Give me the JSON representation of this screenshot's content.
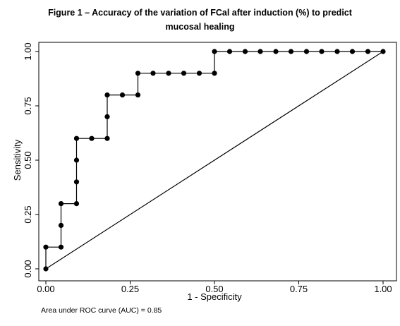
{
  "title_lines": [
    "Figure 1 – Accuracy of the variation of FCal after induction (%) to predict",
    "mucosal healing"
  ],
  "footnote": "Area under ROC curve (AUC) = 0.85",
  "chart_data": {
    "type": "line",
    "title": "Figure 1 – Accuracy of the variation of FCal after induction (%) to predict mucosal healing",
    "xlabel": "1 - Specificity",
    "ylabel": "Sensitivity",
    "xlim": [
      0,
      1
    ],
    "ylim": [
      0,
      1
    ],
    "x_ticks": [
      "0.00",
      "0.25",
      "0.50",
      "0.75",
      "1.00"
    ],
    "y_ticks": [
      "0.00",
      "0.25",
      "0.50",
      "0.75",
      "1.00"
    ],
    "grid": false,
    "series": [
      {
        "kind": "roc-curve",
        "step": true,
        "markers": true,
        "color": "#000000",
        "points": [
          [
            0,
            0
          ],
          [
            0,
            0.1
          ],
          [
            0.045,
            0.1
          ],
          [
            0.045,
            0.2
          ],
          [
            0.045,
            0.3
          ],
          [
            0.091,
            0.3
          ],
          [
            0.091,
            0.4
          ],
          [
            0.091,
            0.5
          ],
          [
            0.091,
            0.6
          ],
          [
            0.136,
            0.6
          ],
          [
            0.182,
            0.6
          ],
          [
            0.182,
            0.7
          ],
          [
            0.182,
            0.8
          ],
          [
            0.227,
            0.8
          ],
          [
            0.273,
            0.8
          ],
          [
            0.273,
            0.9
          ],
          [
            0.318,
            0.9
          ],
          [
            0.364,
            0.9
          ],
          [
            0.409,
            0.9
          ],
          [
            0.455,
            0.9
          ],
          [
            0.5,
            0.9
          ],
          [
            0.5,
            1.0
          ],
          [
            0.545,
            1.0
          ],
          [
            0.591,
            1.0
          ],
          [
            0.636,
            1.0
          ],
          [
            0.682,
            1.0
          ],
          [
            0.727,
            1.0
          ],
          [
            0.773,
            1.0
          ],
          [
            0.818,
            1.0
          ],
          [
            0.864,
            1.0
          ],
          [
            0.909,
            1.0
          ],
          [
            0.955,
            1.0
          ],
          [
            1.0,
            1.0
          ]
        ]
      },
      {
        "kind": "reference-line",
        "step": false,
        "markers": false,
        "color": "#000000",
        "points": [
          [
            0,
            0
          ],
          [
            1,
            1
          ]
        ]
      }
    ],
    "annotation": "Area under ROC curve (AUC) = 0.85"
  }
}
